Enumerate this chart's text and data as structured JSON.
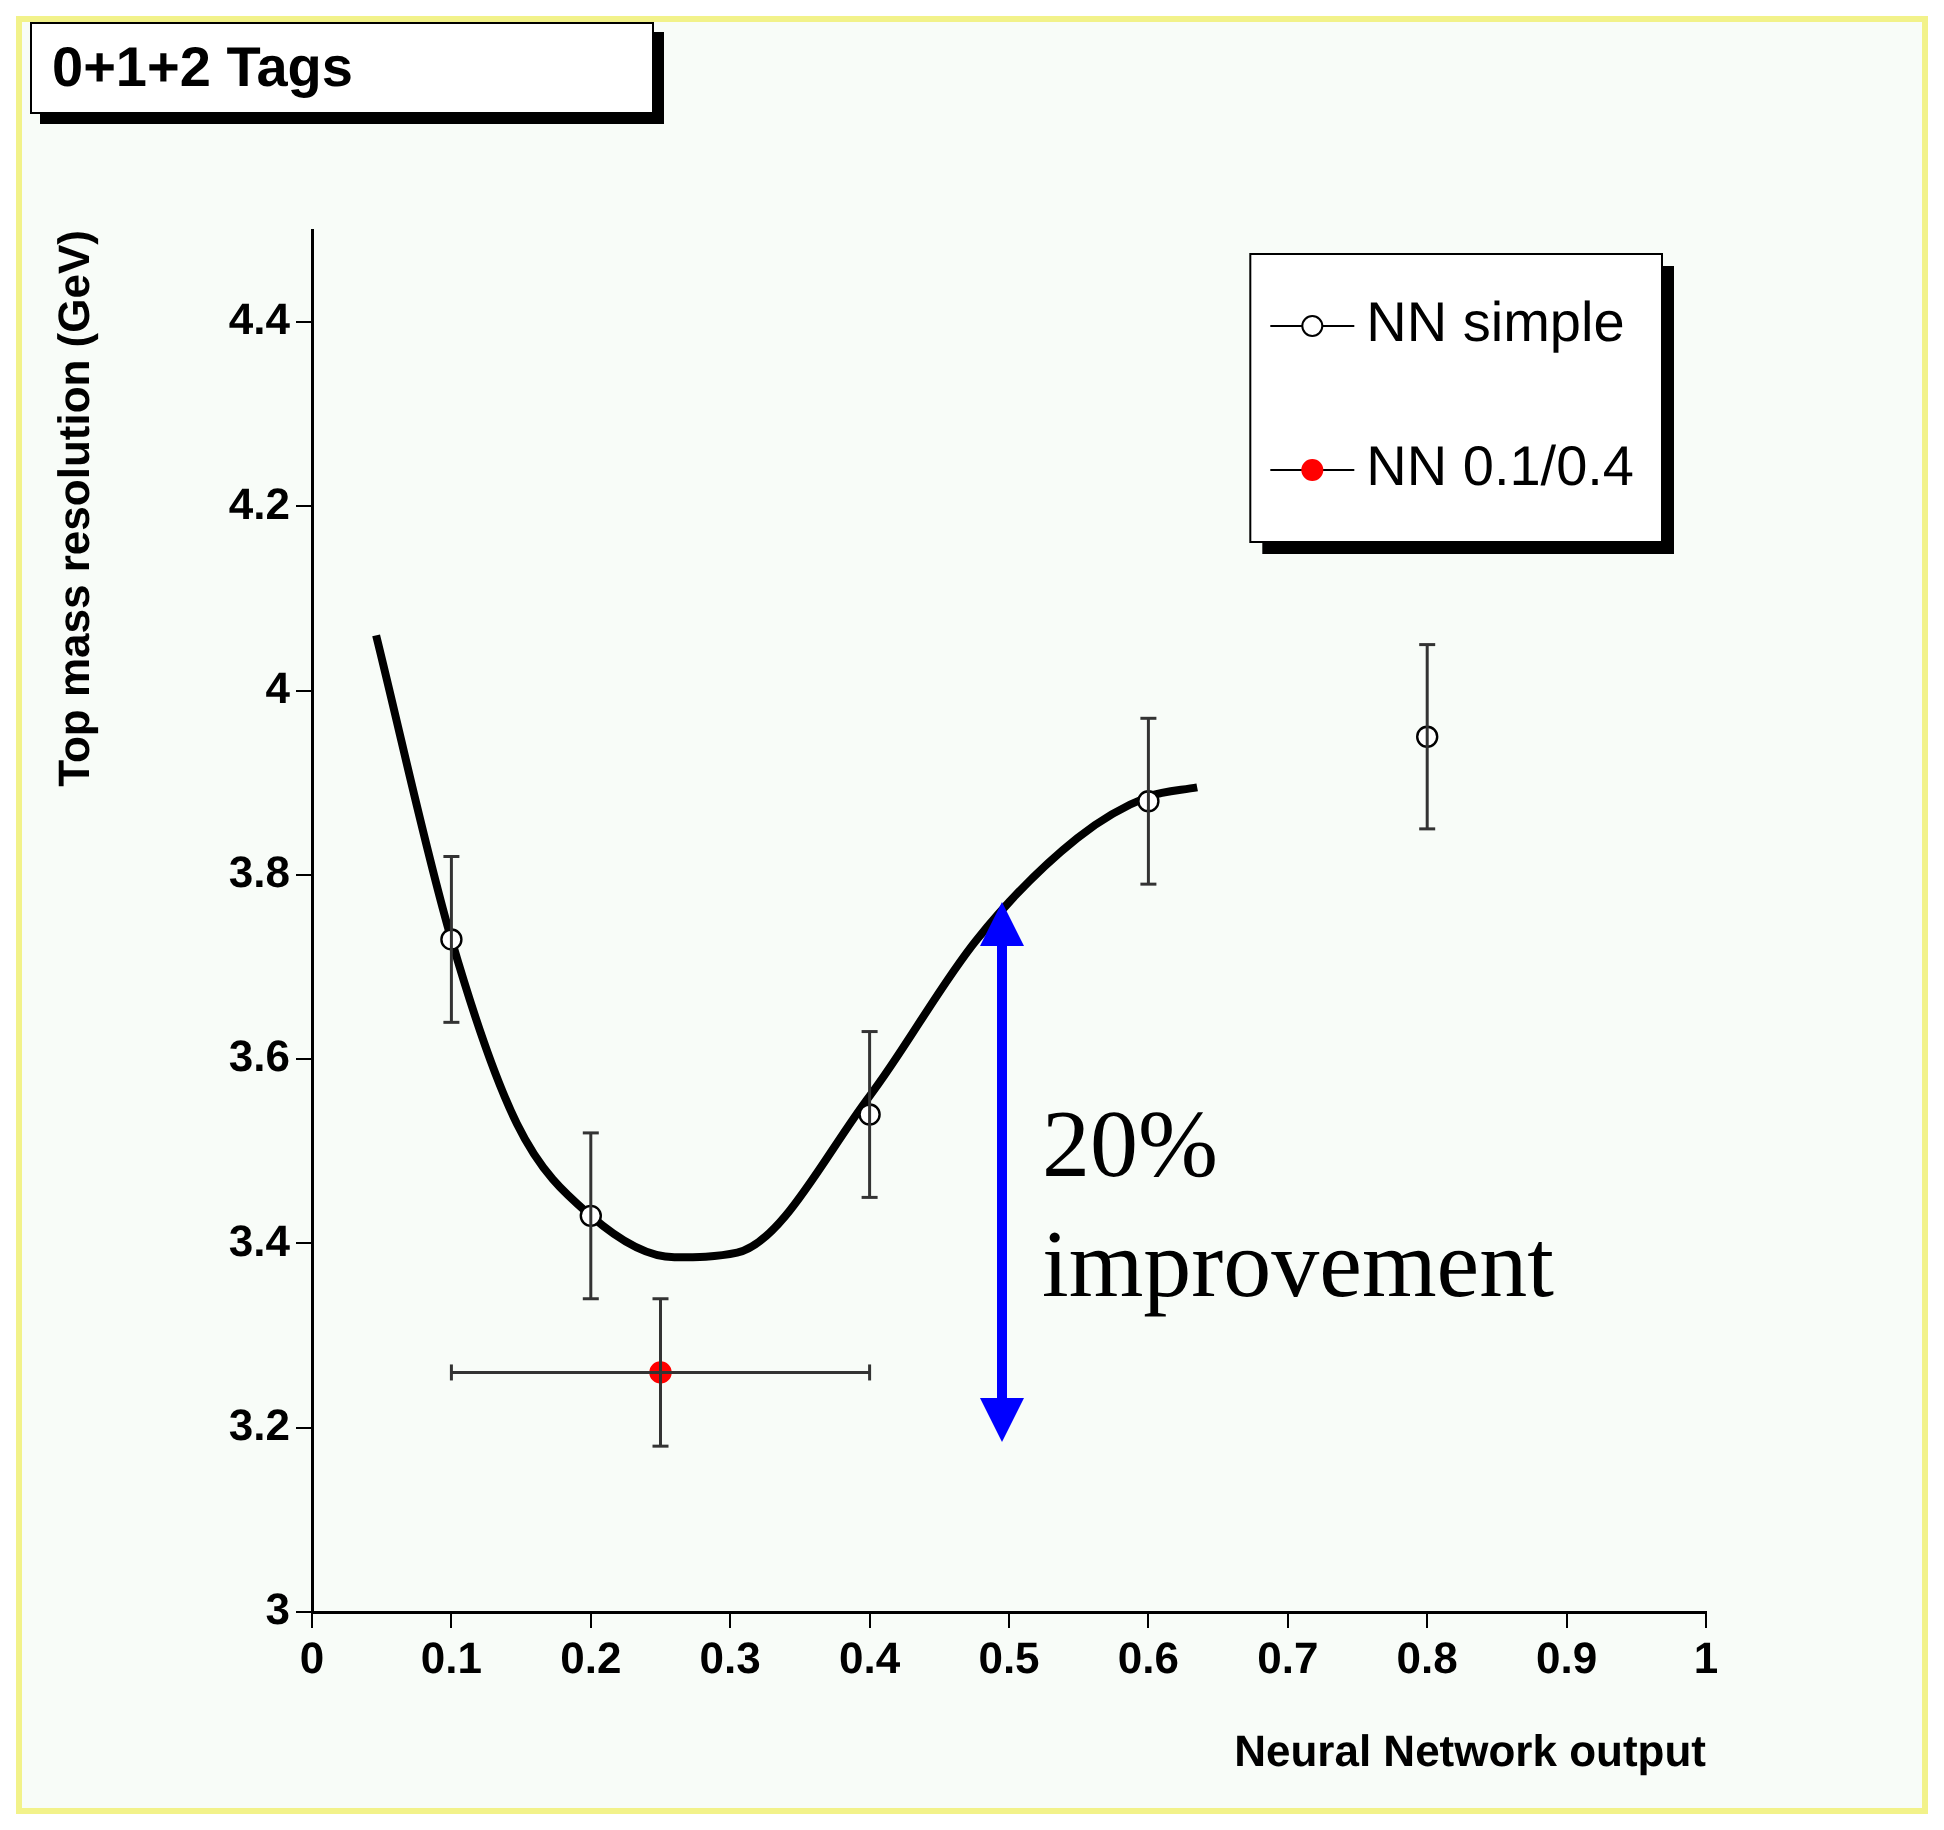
{
  "chart_data": {
    "type": "scatter",
    "title": "0+1+2 Tags",
    "xlabel": "Neural Network output",
    "ylabel": "Top mass resolution (GeV)",
    "xlim": [
      0,
      1
    ],
    "xticks": [
      0,
      0.1,
      0.2,
      0.3,
      0.4,
      0.5,
      0.6,
      0.7,
      0.8,
      0.9,
      1
    ],
    "ylim": [
      3,
      4.5
    ],
    "yticks": [
      3,
      3.2,
      3.4,
      3.6,
      3.8,
      4,
      4.2,
      4.4
    ],
    "grid": false,
    "legend": "top right",
    "marker": "circle",
    "annotations": [
      "20% improvement"
    ],
    "series": [
      {
        "name": "NN simple",
        "color": "#000000",
        "x": [
          0.1,
          0.2,
          0.4,
          0.6,
          0.8
        ],
        "values": [
          3.73,
          3.43,
          3.54,
          3.88,
          3.95
        ],
        "errors": [
          0.09,
          0.09,
          0.09,
          0.09,
          0.1
        ]
      },
      {
        "name": "NN 0.1/0.4",
        "color": "#ff0000",
        "x": [
          0.25
        ],
        "values": [
          3.26
        ],
        "errors": [
          0.08
        ],
        "xerrors": [
          0.15
        ]
      },
      {
        "type": "line",
        "color": "#000000",
        "marker": "none",
        "x": [
          0.046,
          0.1,
          0.147,
          0.2,
          0.26,
          0.305,
          0.4,
          0.477,
          0.549,
          0.6,
          0.635
        ],
        "values": [
          4.06,
          3.73,
          3.53,
          3.43,
          3.385,
          3.39,
          3.56,
          3.73,
          3.84,
          3.885,
          3.895
        ]
      }
    ]
  }
}
